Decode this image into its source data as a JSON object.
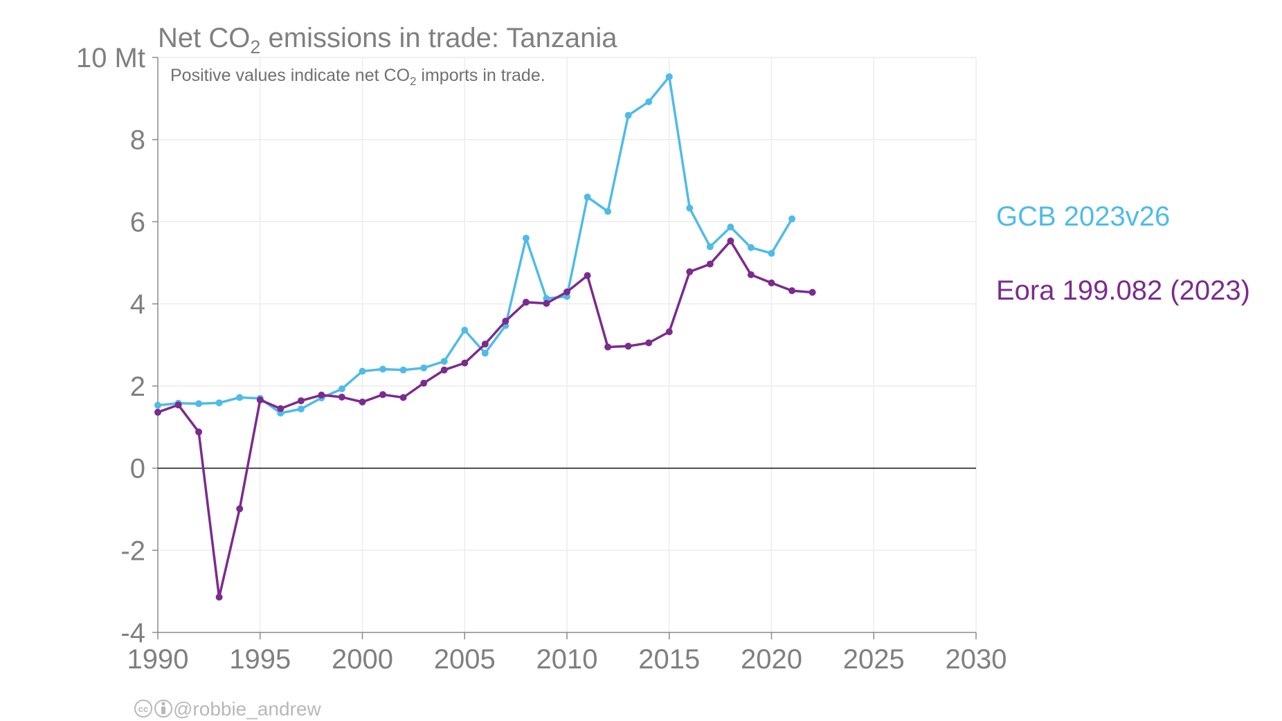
{
  "chart_data": {
    "type": "line",
    "title": {
      "prefix": "Net CO",
      "sub": "2",
      "suffix": " emissions in trade: Tanzania"
    },
    "subtitle": {
      "prefix": "Positive values indicate net CO",
      "sub": "2",
      "suffix": " imports in trade."
    },
    "ylim": [
      -4,
      10
    ],
    "xlim": [
      1990,
      2030
    ],
    "y_ticks": [
      {
        "value": 10,
        "label": "10 Mt"
      },
      {
        "value": 8,
        "label": "8"
      },
      {
        "value": 6,
        "label": "6"
      },
      {
        "value": 4,
        "label": "4"
      },
      {
        "value": 2,
        "label": "2"
      },
      {
        "value": 0,
        "label": "0"
      },
      {
        "value": -2,
        "label": "-2"
      },
      {
        "value": -4,
        "label": "-4"
      }
    ],
    "x_ticks": [
      {
        "value": 1990,
        "label": "1990"
      },
      {
        "value": 1995,
        "label": "1995"
      },
      {
        "value": 2000,
        "label": "2000"
      },
      {
        "value": 2005,
        "label": "2005"
      },
      {
        "value": 2010,
        "label": "2010"
      },
      {
        "value": 2015,
        "label": "2015"
      },
      {
        "value": 2020,
        "label": "2020"
      },
      {
        "value": 2025,
        "label": "2025"
      },
      {
        "value": 2030,
        "label": "2030"
      }
    ],
    "grid": true,
    "legend": "right, inline labels",
    "series": [
      {
        "name": "GCB 2023v26",
        "color": "#4fbbe8",
        "x": [
          1990,
          1991,
          1992,
          1993,
          1994,
          1995,
          1996,
          1997,
          1998,
          1999,
          2000,
          2001,
          2002,
          2003,
          2004,
          2005,
          2006,
          2007,
          2008,
          2009,
          2010,
          2011,
          2012,
          2013,
          2014,
          2015,
          2016,
          2017,
          2018,
          2019,
          2020,
          2021
        ],
        "y": [
          1.53,
          1.58,
          1.57,
          1.59,
          1.72,
          1.7,
          1.34,
          1.44,
          1.71,
          1.93,
          2.36,
          2.41,
          2.39,
          2.44,
          2.6,
          3.36,
          2.8,
          3.47,
          5.6,
          4.13,
          4.18,
          6.6,
          6.25,
          8.59,
          8.92,
          9.53,
          6.33,
          5.39,
          5.87,
          5.37,
          5.23,
          6.07
        ]
      },
      {
        "name": "Eora 199.082 (2023)",
        "color": "#7b2b8e",
        "x": [
          1990,
          1991,
          1992,
          1993,
          1994,
          1995,
          1996,
          1997,
          1998,
          1999,
          2000,
          2001,
          2002,
          2003,
          2004,
          2005,
          2006,
          2007,
          2008,
          2009,
          2010,
          2011,
          2012,
          2013,
          2014,
          2015,
          2016,
          2017,
          2018,
          2019,
          2020,
          2021,
          2022
        ],
        "y": [
          1.36,
          1.54,
          0.88,
          -3.14,
          -0.99,
          1.66,
          1.45,
          1.64,
          1.78,
          1.73,
          1.61,
          1.79,
          1.72,
          2.07,
          2.39,
          2.56,
          3.02,
          3.58,
          4.04,
          4.01,
          4.29,
          4.69,
          2.95,
          2.97,
          3.05,
          3.32,
          4.78,
          4.97,
          5.53,
          4.71,
          4.51,
          4.32,
          4.28
        ]
      }
    ]
  },
  "credit": {
    "handle": "@robbie_andrew"
  }
}
